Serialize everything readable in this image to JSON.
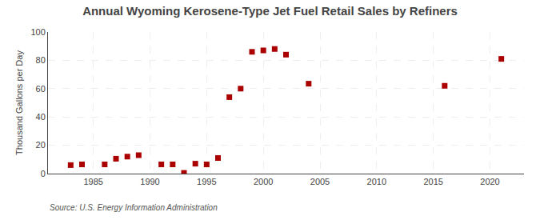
{
  "chart_data": {
    "type": "scatter",
    "title": "Annual Wyoming Kerosene-Type Jet Fuel Retail Sales by Refiners",
    "ylabel": "Thousand Gallons per Day",
    "annotations": [
      "Source: U.S. Energy Information Administration"
    ],
    "x": [
      1983,
      1984,
      1986,
      1987,
      1988,
      1989,
      1991,
      1992,
      1993,
      1994,
      1995,
      1996,
      1997,
      1998,
      1999,
      2000,
      2001,
      2002,
      2004,
      2016,
      2021
    ],
    "values": [
      6.0,
      6.5,
      6.5,
      10.5,
      12.0,
      13.0,
      6.5,
      6.5,
      0.5,
      7.0,
      6.5,
      11.0,
      54.0,
      60.0,
      86.0,
      87.0,
      88.0,
      84.0,
      63.5,
      62.0,
      81.0
    ],
    "color": "#aa0000",
    "marker": "square",
    "xlim": [
      1981,
      2023
    ],
    "ylim": [
      0,
      100
    ],
    "xticks": [
      1985,
      1990,
      1995,
      2000,
      2005,
      2010,
      2015,
      2020
    ],
    "yticks": [
      0,
      20,
      40,
      60,
      80,
      100
    ],
    "grid": true
  }
}
